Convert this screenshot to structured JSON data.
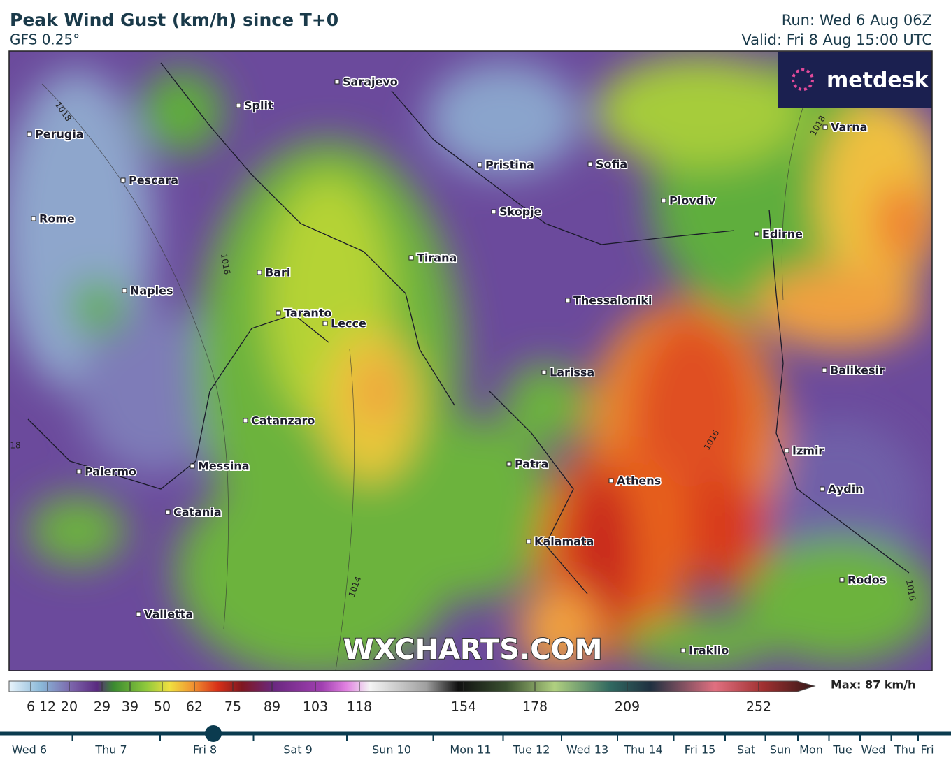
{
  "header": {
    "title": "Peak Wind Gust (km/h) since T+0",
    "model": "GFS 0.25°",
    "run": "Run: Wed 6 Aug 06Z",
    "valid": "Valid: Fri 8 Aug 15:00 UTC"
  },
  "logo": "metdesk",
  "watermark": "WXCHARTS.COM",
  "cities": [
    "Sarajevo",
    "Split",
    "Perugia",
    "Pescara",
    "Rome",
    "Bari",
    "Naples",
    "Taranto",
    "Lecce",
    "Pristina",
    "Sofia",
    "Plovdiv",
    "Skopje",
    "Tirana",
    "Edirne",
    "Varna",
    "Thessaloniki",
    "Larissa",
    "Balikesir",
    "Catanzaro",
    "Izmir",
    "Patra",
    "Messina",
    "Palermo",
    "Athens",
    "Aydin",
    "Catania",
    "Kalamata",
    "Rodos",
    "Valletta",
    "Iraklio"
  ],
  "isobars": [
    "1018",
    "1018",
    "1016",
    "1014",
    "1016",
    "1016",
    "18"
  ],
  "colorbar": {
    "ticks": [
      6,
      12,
      20,
      29,
      39,
      50,
      62,
      75,
      89,
      103,
      118,
      154,
      178,
      209,
      252
    ],
    "max_label": "Max: 87 km/h"
  },
  "timeline": {
    "days": [
      "Wed 6",
      "Thu 7",
      "Fri 8",
      "Sat 9",
      "Sun 10",
      "Mon 11",
      "Tue 12",
      "Wed 13",
      "Thu 14",
      "Fri 15",
      "Sat",
      "Sun",
      "Mon",
      "Tue",
      "Wed",
      "Thu",
      "Fri"
    ]
  }
}
